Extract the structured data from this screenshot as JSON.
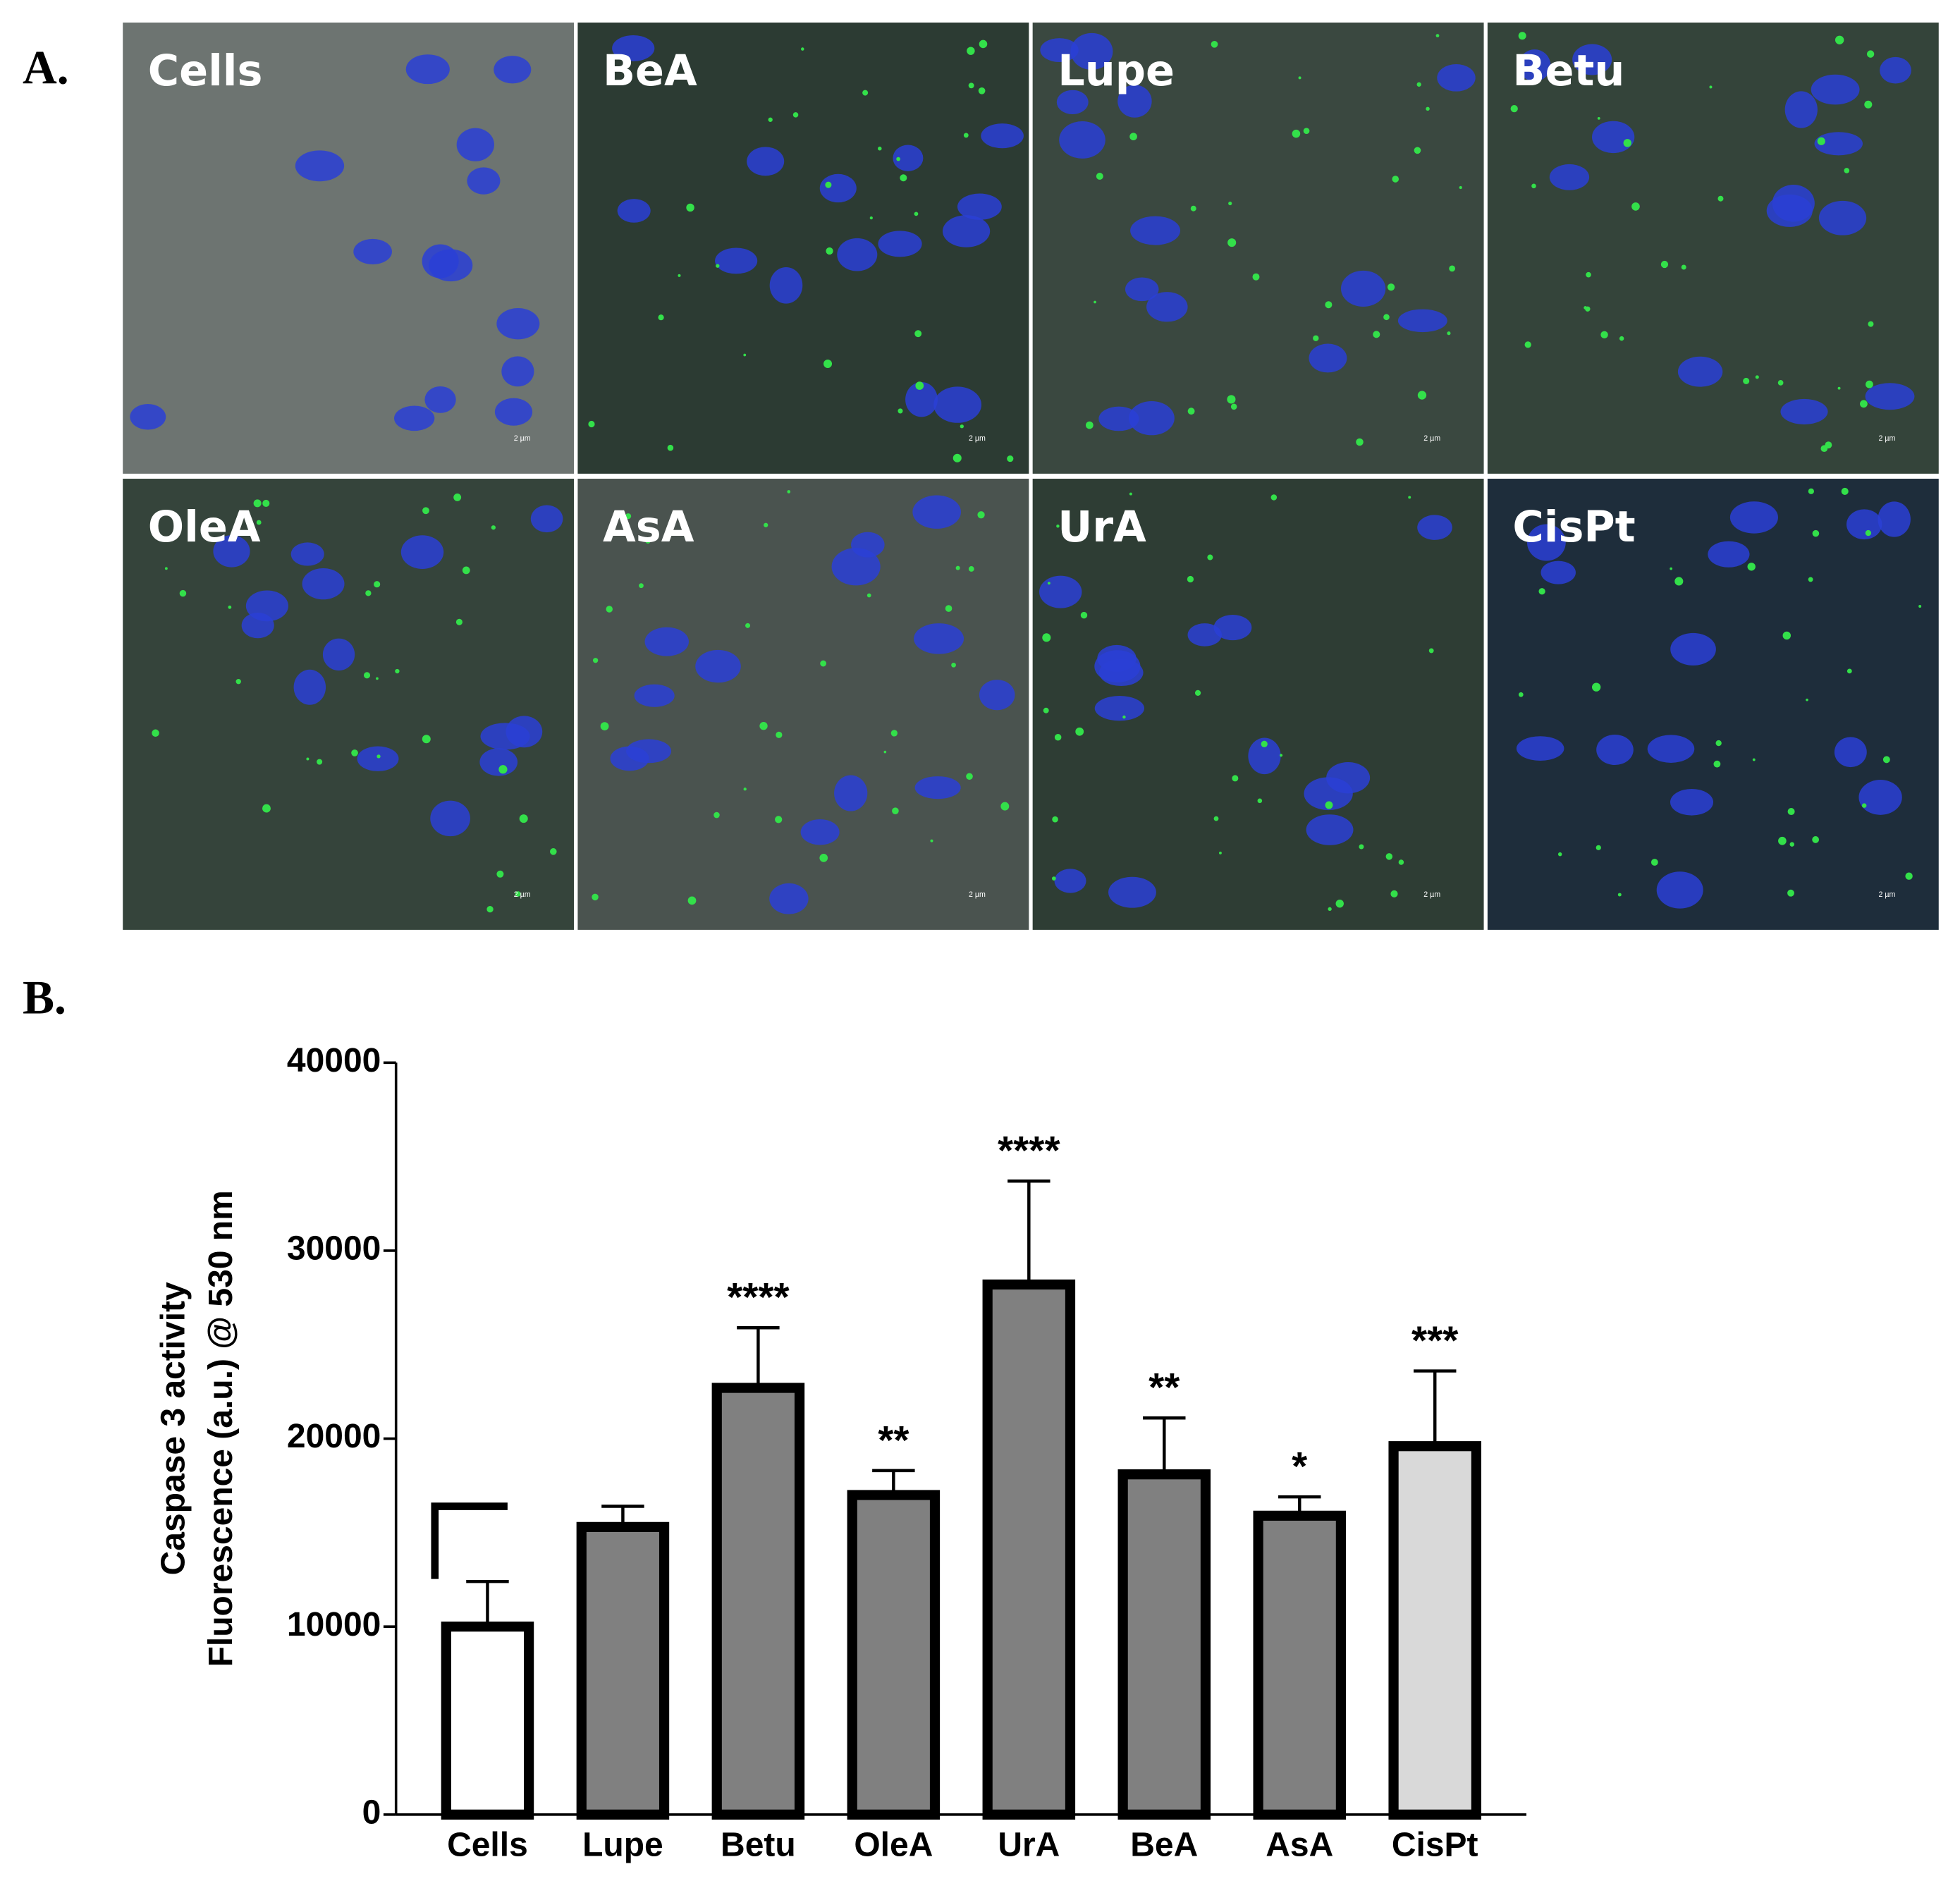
{
  "panel_a": {
    "label": "A.",
    "panels": [
      {
        "title": "Cells",
        "scale_bar": "2 µm"
      },
      {
        "title": "BeA",
        "scale_bar": "2 µm"
      },
      {
        "title": "Lupe",
        "scale_bar": "2 µm"
      },
      {
        "title": "Betu",
        "scale_bar": "2 µm"
      },
      {
        "title": "OleA",
        "scale_bar": "2 µm"
      },
      {
        "title": "AsA",
        "scale_bar": "2 µm"
      },
      {
        "title": "UrA",
        "scale_bar": "2 µm"
      },
      {
        "title": "CisPt",
        "scale_bar": "2 µm"
      }
    ]
  },
  "panel_b_label": "B.",
  "chart_data": {
    "type": "bar",
    "y_label_lines": [
      "Caspase 3 activity",
      "Fluorescence (a.u.) @ 530 nm"
    ],
    "categories": [
      "Cells",
      "Lupe",
      "Betu",
      "OleA",
      "UrA",
      "BeA",
      "AsA",
      "CisPt"
    ],
    "values": [
      10000,
      15300,
      22700,
      17000,
      28200,
      18100,
      15900,
      19600
    ],
    "errors": [
      2400,
      1100,
      3200,
      1300,
      5500,
      3000,
      1000,
      4000
    ],
    "significance": [
      null,
      null,
      "****",
      "**",
      "****",
      "**",
      "*",
      "***"
    ],
    "colors": [
      "#ffffff",
      "#808080",
      "#808080",
      "#808080",
      "#808080",
      "#808080",
      "#808080",
      "#d9d9d9"
    ],
    "ylim": [
      0,
      40000
    ],
    "yticks": [
      0,
      10000,
      20000,
      30000,
      40000
    ]
  }
}
